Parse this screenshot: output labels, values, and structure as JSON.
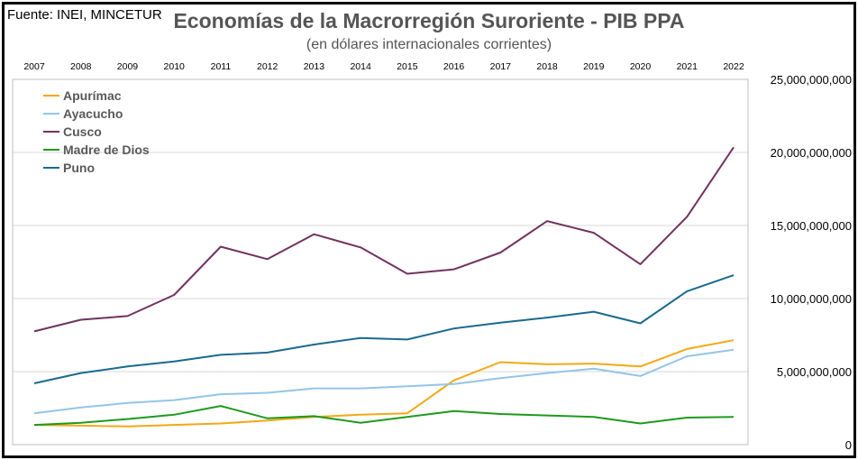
{
  "source": "Fuente: INEI, MINCETUR",
  "chart_data": {
    "type": "line",
    "title": "Economías de la Macrorregión Suroriente - PIB PPA",
    "subtitle": "(en dólares internacionales corrientes)",
    "x": [
      "2007",
      "2008",
      "2009",
      "2010",
      "2011",
      "2012",
      "2013",
      "2014",
      "2015",
      "2016",
      "2017",
      "2018",
      "2019",
      "2020",
      "2021",
      "2022"
    ],
    "y_ticks": [
      "0",
      "5,000,000,000",
      "10,000,000,000",
      "15,000,000,000",
      "20,000,000,000",
      "25,000,000,000"
    ],
    "ylim": [
      0,
      25000000000
    ],
    "grid": true,
    "legend_position": "top-left",
    "series": [
      {
        "name": "Apurímac",
        "color": "#F4A817",
        "values": [
          1350000000,
          1300000000,
          1250000000,
          1350000000,
          1450000000,
          1650000000,
          1900000000,
          2050000000,
          2150000000,
          4400000000,
          5650000000,
          5500000000,
          5550000000,
          5350000000,
          6550000000,
          7150000000
        ]
      },
      {
        "name": "Ayacucho",
        "color": "#93C5E6",
        "values": [
          2150000000,
          2550000000,
          2850000000,
          3050000000,
          3450000000,
          3550000000,
          3850000000,
          3850000000,
          4000000000,
          4150000000,
          4550000000,
          4900000000,
          5200000000,
          4700000000,
          6050000000,
          6500000000
        ]
      },
      {
        "name": "Cusco",
        "color": "#72325F",
        "values": [
          7750000000,
          8550000000,
          8800000000,
          10250000000,
          13550000000,
          12700000000,
          14400000000,
          13500000000,
          11700000000,
          12000000000,
          13150000000,
          15300000000,
          14500000000,
          12350000000,
          15600000000,
          20350000000
        ]
      },
      {
        "name": "Madre de Dios",
        "color": "#1E9A1E",
        "values": [
          1350000000,
          1500000000,
          1750000000,
          2050000000,
          2650000000,
          1800000000,
          1950000000,
          1500000000,
          1900000000,
          2300000000,
          2100000000,
          2000000000,
          1900000000,
          1450000000,
          1850000000,
          1900000000
        ]
      },
      {
        "name": "Puno",
        "color": "#1A6A8E",
        "values": [
          4200000000,
          4900000000,
          5350000000,
          5700000000,
          6150000000,
          6300000000,
          6850000000,
          7300000000,
          7200000000,
          7950000000,
          8350000000,
          8700000000,
          9100000000,
          8300000000,
          10500000000,
          11600000000
        ]
      }
    ]
  }
}
